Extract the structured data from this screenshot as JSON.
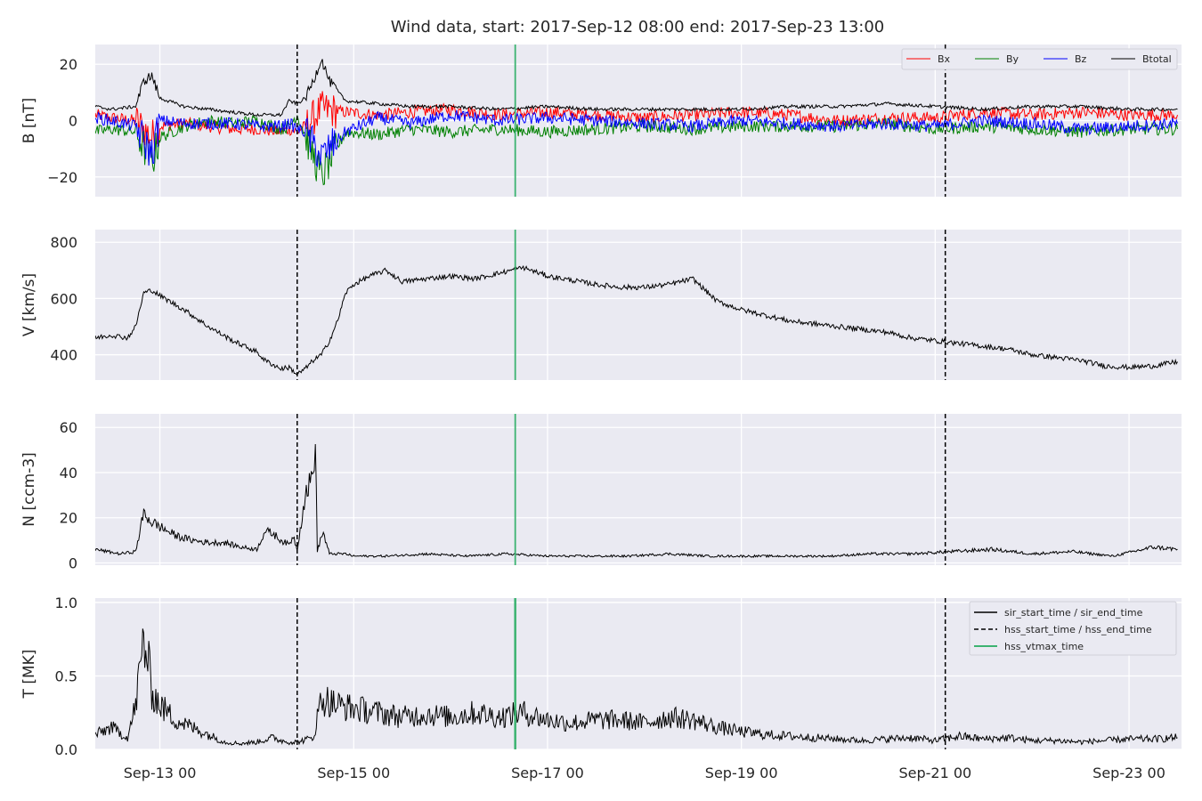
{
  "figure": {
    "title": "Wind data, start: 2017-Sep-12 08:00  end: 2017-Sep-23 13:00",
    "x_tick_labels": [
      "Sep-13 00",
      "Sep-15 00",
      "Sep-17 00",
      "Sep-19 00",
      "Sep-21 00",
      "Sep-23 00"
    ]
  },
  "colors": {
    "panel_background": "#eaeaf2",
    "grid": "#ffffff",
    "bx": "#ff0000",
    "by": "#008000",
    "bz": "#0000ff",
    "btotal": "#000000",
    "event_line": "#000000",
    "vtmax_line": "#3cb371"
  },
  "chart_data": [
    {
      "type": "line",
      "ylabel": "B [nT]",
      "x_range_hours_from_sep12_00": [
        8,
        277
      ],
      "ylim": [
        -27,
        27
      ],
      "yticks": [
        -20,
        0,
        20
      ],
      "ytick_labels": [
        "−20",
        "0",
        "20"
      ],
      "grid": true,
      "legend": {
        "position": "top-right",
        "entries": [
          "Bx",
          "By",
          "Bz",
          "Btotal"
        ]
      },
      "series": [
        {
          "name": "Bx",
          "hours": [
            8,
            12,
            18,
            22,
            24,
            30,
            36,
            42,
            48,
            54,
            56,
            58,
            60,
            64,
            70,
            78,
            86,
            96,
            108,
            120,
            132,
            144,
            156,
            168,
            180,
            192,
            204,
            216,
            228,
            240,
            252,
            264,
            276
          ],
          "values": [
            2,
            1,
            0,
            -6,
            -2,
            -1,
            -2,
            -3,
            -3,
            -4,
            -3,
            -4,
            -2,
            4,
            3,
            2,
            3,
            4,
            2,
            3,
            2,
            1,
            2,
            3,
            2,
            0,
            1,
            1,
            3,
            2,
            3,
            2,
            2
          ]
        },
        {
          "name": "By",
          "hours": [
            8,
            12,
            18,
            22,
            24,
            30,
            36,
            42,
            48,
            54,
            56,
            58,
            60,
            64,
            70,
            78,
            86,
            96,
            108,
            120,
            132,
            144,
            156,
            168,
            180,
            192,
            204,
            216,
            228,
            240,
            252,
            264,
            276
          ],
          "values": [
            -4,
            -3,
            -4,
            -15,
            -6,
            -2,
            0,
            -1,
            0,
            -3,
            -2,
            2,
            -5,
            -20,
            -4,
            -5,
            -3,
            -4,
            -3,
            -4,
            -3,
            -2,
            -3,
            -2,
            -2,
            -2,
            -1,
            -3,
            -2,
            -3,
            -4,
            -3,
            -3
          ]
        },
        {
          "name": "Bz",
          "hours": [
            8,
            12,
            18,
            22,
            24,
            30,
            36,
            42,
            48,
            54,
            56,
            58,
            60,
            64,
            70,
            78,
            86,
            96,
            108,
            120,
            132,
            144,
            156,
            168,
            180,
            192,
            204,
            216,
            228,
            240,
            252,
            264,
            276
          ],
          "values": [
            1,
            0,
            -2,
            -12,
            0,
            -1,
            -1,
            -1,
            -2,
            -2,
            -1,
            -3,
            -4,
            -13,
            -4,
            1,
            -1,
            2,
            0,
            1,
            0,
            -1,
            -2,
            0,
            -1,
            -2,
            -1,
            -2,
            0,
            -1,
            -3,
            -2,
            -1
          ]
        },
        {
          "name": "Btotal",
          "hours": [
            8,
            12,
            18,
            20,
            22,
            24,
            30,
            36,
            42,
            48,
            54,
            56,
            58,
            60,
            62,
            64,
            66,
            70,
            78,
            86,
            96,
            108,
            120,
            132,
            144,
            156,
            168,
            180,
            192,
            204,
            216,
            228,
            240,
            252,
            264,
            276
          ],
          "values": [
            5,
            4,
            5,
            14,
            16,
            8,
            5,
            4,
            3,
            2,
            2,
            7,
            6,
            8,
            14,
            22,
            14,
            7,
            6,
            5,
            5,
            4,
            5,
            4,
            4,
            4,
            4,
            5,
            5,
            6,
            5,
            4,
            5,
            5,
            4,
            4
          ]
        }
      ]
    },
    {
      "type": "line",
      "ylabel": "V [km/s]",
      "ylim": [
        310,
        845
      ],
      "yticks": [
        400,
        600,
        800
      ],
      "ytick_labels": [
        "400",
        "600",
        "800"
      ],
      "grid": true,
      "series": [
        {
          "hours": [
            8,
            12,
            16,
            18,
            20,
            22,
            24,
            30,
            36,
            42,
            48,
            50,
            54,
            56,
            58,
            60,
            62,
            64,
            66,
            68,
            70,
            72,
            76,
            80,
            84,
            90,
            96,
            102,
            108,
            114,
            120,
            126,
            132,
            138,
            144,
            150,
            156,
            162,
            168,
            174,
            180,
            186,
            192,
            198,
            204,
            210,
            216,
            222,
            228,
            234,
            240,
            246,
            252,
            258,
            264,
            270,
            276
          ],
          "values": [
            460,
            470,
            460,
            500,
            620,
            630,
            610,
            560,
            500,
            450,
            410,
            380,
            350,
            355,
            330,
            350,
            380,
            400,
            450,
            520,
            620,
            650,
            680,
            700,
            660,
            670,
            680,
            670,
            690,
            710,
            680,
            665,
            650,
            640,
            640,
            650,
            670,
            590,
            560,
            540,
            520,
            510,
            500,
            490,
            480,
            460,
            450,
            440,
            430,
            420,
            400,
            390,
            380,
            360,
            355,
            360,
            375
          ]
        }
      ]
    },
    {
      "type": "line",
      "ylabel": "N [ccm-3]",
      "ylim": [
        -1,
        66
      ],
      "yticks": [
        0,
        20,
        40,
        60
      ],
      "ytick_labels": [
        "0",
        "20",
        "40",
        "60"
      ],
      "grid": true,
      "series": [
        {
          "hours": [
            8,
            14,
            18,
            20,
            22,
            24,
            28,
            32,
            36,
            40,
            44,
            48,
            50,
            52,
            54,
            56,
            57,
            58,
            60,
            62,
            62.5,
            63,
            64,
            64.5,
            65,
            66,
            70,
            72,
            80,
            90,
            100,
            110,
            120,
            130,
            140,
            150,
            160,
            170,
            180,
            190,
            200,
            210,
            220,
            230,
            240,
            250,
            260,
            270,
            276
          ],
          "values": [
            6,
            4,
            5,
            22,
            18,
            16,
            12,
            10,
            9,
            9,
            7,
            6,
            14,
            13,
            10,
            8,
            12,
            6,
            30,
            40,
            55,
            5,
            12,
            13,
            10,
            4,
            4,
            3,
            3,
            4,
            3,
            4,
            3,
            3,
            3,
            4,
            3,
            3,
            3,
            3,
            4,
            4,
            5,
            6,
            4,
            5,
            3,
            7,
            6
          ]
        }
      ]
    },
    {
      "type": "line",
      "ylabel": "T [MK]",
      "ylim": [
        0,
        1.03
      ],
      "yticks": [
        0.0,
        0.5,
        1.0
      ],
      "ytick_labels": [
        "0.0",
        "0.5",
        "1.0"
      ],
      "grid": true,
      "legend": {
        "position": "top-right",
        "entries": [
          "sir_start_time / sir_end_time",
          "hss_start_time / hss_end_time",
          "hss_vtmax_time"
        ]
      },
      "series": [
        {
          "hours": [
            8,
            12,
            16,
            18,
            20,
            21,
            22,
            24,
            28,
            32,
            36,
            40,
            44,
            48,
            52,
            54,
            56,
            58,
            62,
            64,
            68,
            72,
            78,
            84,
            90,
            96,
            102,
            108,
            114,
            120,
            126,
            132,
            138,
            144,
            150,
            156,
            162,
            168,
            174,
            180,
            186,
            192,
            198,
            204,
            210,
            216,
            222,
            228,
            234,
            240,
            246,
            252,
            258,
            264,
            270,
            276
          ],
          "values": [
            0.1,
            0.15,
            0.08,
            0.3,
            0.75,
            0.6,
            0.4,
            0.3,
            0.2,
            0.15,
            0.1,
            0.05,
            0.04,
            0.05,
            0.08,
            0.06,
            0.05,
            0.05,
            0.08,
            0.35,
            0.3,
            0.28,
            0.25,
            0.22,
            0.24,
            0.22,
            0.25,
            0.22,
            0.25,
            0.2,
            0.18,
            0.2,
            0.2,
            0.18,
            0.22,
            0.2,
            0.15,
            0.12,
            0.1,
            0.09,
            0.08,
            0.07,
            0.06,
            0.07,
            0.08,
            0.06,
            0.09,
            0.07,
            0.08,
            0.06,
            0.06,
            0.05,
            0.06,
            0.07,
            0.07,
            0.08
          ]
        }
      ]
    }
  ],
  "events": {
    "hss_start_hours": 58,
    "hss_end_hours": 218.5,
    "hss_vtmax_hours": 112
  }
}
